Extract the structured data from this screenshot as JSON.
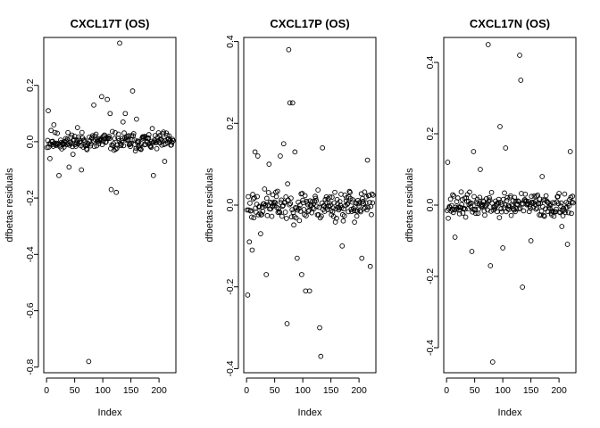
{
  "chart_data": [
    {
      "type": "scatter",
      "title": "CXCL17T (OS)",
      "xlabel": "Index",
      "ylabel": "dfbetas residuals",
      "xlim": [
        -5,
        230
      ],
      "ylim": [
        -0.82,
        0.37
      ],
      "xticks": [
        0,
        50,
        100,
        150,
        200
      ],
      "yticks": [
        -0.8,
        -0.6,
        -0.4,
        -0.2,
        0.0,
        0.2
      ],
      "ytick_labels": [
        "-0.8",
        "-0.6",
        "-0.4",
        "-0.2",
        "0.0",
        "0.2"
      ],
      "grid": false,
      "legend": "none",
      "seed": 11,
      "spread": 0.035,
      "n": 225,
      "outliers": [
        {
          "x": 3,
          "y": 0.11
        },
        {
          "x": 6,
          "y": -0.06
        },
        {
          "x": 8,
          "y": 0.04
        },
        {
          "x": 13,
          "y": 0.06
        },
        {
          "x": 22,
          "y": -0.12
        },
        {
          "x": 40,
          "y": -0.09
        },
        {
          "x": 55,
          "y": 0.05
        },
        {
          "x": 62,
          "y": -0.1
        },
        {
          "x": 75,
          "y": -0.78
        },
        {
          "x": 84,
          "y": 0.13
        },
        {
          "x": 98,
          "y": 0.16
        },
        {
          "x": 108,
          "y": 0.15
        },
        {
          "x": 113,
          "y": 0.1
        },
        {
          "x": 115,
          "y": -0.17
        },
        {
          "x": 124,
          "y": -0.18
        },
        {
          "x": 130,
          "y": 0.35
        },
        {
          "x": 136,
          "y": 0.07
        },
        {
          "x": 140,
          "y": 0.1
        },
        {
          "x": 153,
          "y": 0.18
        },
        {
          "x": 160,
          "y": 0.08
        },
        {
          "x": 190,
          "y": -0.12
        },
        {
          "x": 210,
          "y": -0.07
        }
      ]
    },
    {
      "type": "scatter",
      "title": "CXCL17P (OS)",
      "xlabel": "Index",
      "ylabel": "dfbetas residuals",
      "xlim": [
        -5,
        230
      ],
      "ylim": [
        -0.41,
        0.41
      ],
      "xticks": [
        0,
        50,
        100,
        150,
        200
      ],
      "yticks": [
        -0.4,
        -0.2,
        0.0,
        0.2,
        0.4
      ],
      "ytick_labels": [
        "-0.4",
        "-0.2",
        "0.0",
        "0.2",
        "0.4"
      ],
      "grid": false,
      "legend": "none",
      "seed": 23,
      "spread": 0.04,
      "n": 225,
      "outliers": [
        {
          "x": 2,
          "y": -0.22
        },
        {
          "x": 5,
          "y": -0.09
        },
        {
          "x": 10,
          "y": -0.11
        },
        {
          "x": 15,
          "y": 0.13
        },
        {
          "x": 20,
          "y": 0.12
        },
        {
          "x": 25,
          "y": -0.07
        },
        {
          "x": 35,
          "y": -0.17
        },
        {
          "x": 40,
          "y": 0.1
        },
        {
          "x": 60,
          "y": 0.12
        },
        {
          "x": 66,
          "y": 0.15
        },
        {
          "x": 72,
          "y": -0.29
        },
        {
          "x": 75,
          "y": 0.38
        },
        {
          "x": 77,
          "y": 0.25
        },
        {
          "x": 82,
          "y": 0.25
        },
        {
          "x": 86,
          "y": 0.13
        },
        {
          "x": 90,
          "y": -0.13
        },
        {
          "x": 98,
          "y": -0.17
        },
        {
          "x": 105,
          "y": -0.21
        },
        {
          "x": 112,
          "y": -0.21
        },
        {
          "x": 130,
          "y": -0.3
        },
        {
          "x": 132,
          "y": -0.37
        },
        {
          "x": 135,
          "y": 0.14
        },
        {
          "x": 170,
          "y": -0.1
        },
        {
          "x": 205,
          "y": -0.13
        },
        {
          "x": 215,
          "y": 0.11
        },
        {
          "x": 220,
          "y": -0.15
        }
      ]
    },
    {
      "type": "scatter",
      "title": "CXCL17N (OS)",
      "xlabel": "Index",
      "ylabel": "dfbetas residuals",
      "xlim": [
        -5,
        230
      ],
      "ylim": [
        -0.47,
        0.47
      ],
      "xticks": [
        0,
        50,
        100,
        150,
        200
      ],
      "yticks": [
        -0.4,
        -0.2,
        0.0,
        0.2,
        0.4
      ],
      "ytick_labels": [
        "-0.4",
        "-0.2",
        "0.0",
        "0.2",
        "0.4"
      ],
      "grid": false,
      "legend": "none",
      "seed": 37,
      "spread": 0.035,
      "n": 225,
      "outliers": [
        {
          "x": 2,
          "y": 0.12
        },
        {
          "x": 15,
          "y": -0.09
        },
        {
          "x": 45,
          "y": -0.13
        },
        {
          "x": 48,
          "y": 0.15
        },
        {
          "x": 60,
          "y": 0.1
        },
        {
          "x": 74,
          "y": 0.45
        },
        {
          "x": 78,
          "y": -0.17
        },
        {
          "x": 82,
          "y": -0.44
        },
        {
          "x": 95,
          "y": 0.22
        },
        {
          "x": 100,
          "y": -0.12
        },
        {
          "x": 105,
          "y": 0.16
        },
        {
          "x": 130,
          "y": 0.42
        },
        {
          "x": 132,
          "y": 0.35
        },
        {
          "x": 135,
          "y": -0.23
        },
        {
          "x": 150,
          "y": -0.1
        },
        {
          "x": 170,
          "y": 0.08
        },
        {
          "x": 205,
          "y": -0.06
        },
        {
          "x": 215,
          "y": -0.11
        },
        {
          "x": 220,
          "y": 0.15
        }
      ]
    }
  ]
}
